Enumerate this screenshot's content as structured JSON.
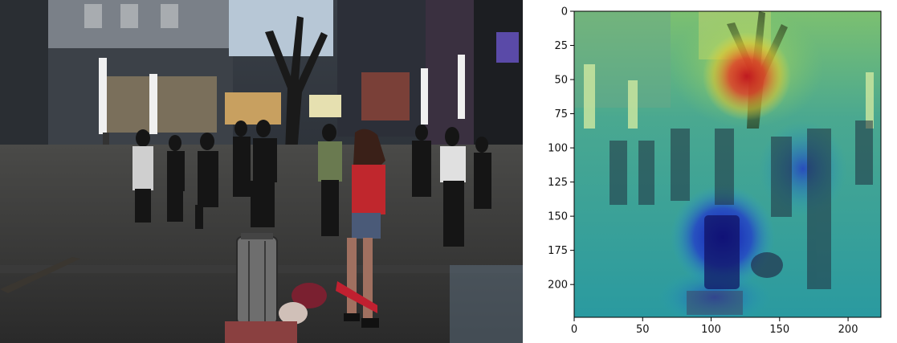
{
  "left_photo": {
    "description_hint": ""
  },
  "heatmap": {
    "x_ticks": [
      "0",
      "50",
      "100",
      "150",
      "200"
    ],
    "y_ticks": [
      "0",
      "25",
      "50",
      "75",
      "100",
      "125",
      "150",
      "175",
      "200"
    ],
    "x_tick_values": [
      0,
      50,
      100,
      150,
      200
    ],
    "y_tick_values": [
      0,
      25,
      50,
      75,
      100,
      125,
      150,
      175,
      200
    ],
    "xlim": [
      0,
      224
    ],
    "ylim": [
      224,
      0
    ],
    "colormap": "jet"
  }
}
